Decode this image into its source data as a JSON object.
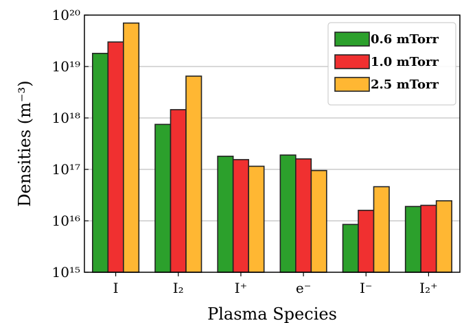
{
  "chart_data": {
    "type": "bar",
    "xlabel": "Plasma Species",
    "ylabel": "Densities (m⁻³)",
    "yscale": "log",
    "ylim": [
      1000000000000000.0,
      1e+20
    ],
    "grid": "horizontal",
    "legend_position": "top-right",
    "categories": [
      "I",
      "I₂",
      "I⁺",
      "e⁻",
      "I⁻",
      "I₂⁺"
    ],
    "series": [
      {
        "name": "0.6 mTorr",
        "color": "#2ca02c",
        "values": [
          1.8e+19,
          7.5e+17,
          1.8e+17,
          1.9e+17,
          8500000000000000.0,
          1.9e+16
        ]
      },
      {
        "name": "1.0 mTorr",
        "color": "#f03030",
        "values": [
          3e+19,
          1.45e+18,
          1.55e+17,
          1.6e+17,
          1.6e+16,
          2e+16
        ]
      },
      {
        "name": "2.5 mTorr",
        "color": "#ffb733",
        "values": [
          7e+19,
          6.5e+18,
          1.15e+17,
          9.5e+16,
          4.6e+16,
          2.45e+16
        ]
      }
    ],
    "ytick_labels": [
      "10¹⁵",
      "10¹⁶",
      "10¹⁷",
      "10¹⁸",
      "10¹⁹",
      "10²⁰"
    ]
  }
}
